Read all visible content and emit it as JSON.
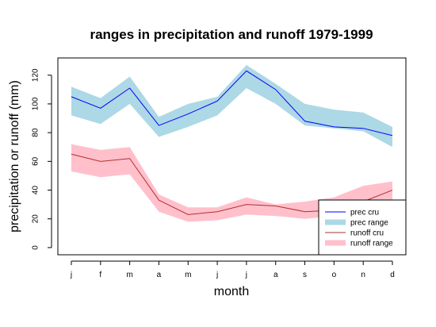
{
  "chart_data": {
    "type": "line",
    "title": "ranges in precipitation and runoff 1979-1999",
    "xlabel": "month",
    "ylabel": "precipitation or runoff (mm)",
    "categories": [
      "j",
      "f",
      "m",
      "a",
      "m",
      "j",
      "j",
      "a",
      "s",
      "o",
      "n",
      "d"
    ],
    "ylim": [
      -5,
      132
    ],
    "yticks": [
      0,
      20,
      40,
      60,
      80,
      100,
      120
    ],
    "grid": false,
    "legend_position": "bottom-right",
    "series": [
      {
        "name": "prec cru",
        "kind": "line",
        "color": "#0000ff",
        "values": [
          105,
          97,
          111,
          85,
          93,
          102,
          123,
          110,
          88,
          84,
          83,
          78
        ]
      },
      {
        "name": "prec range",
        "kind": "band",
        "color": "#add8e6",
        "lower": [
          92,
          86,
          100,
          77,
          84,
          92,
          111,
          100,
          85,
          83,
          81,
          70
        ],
        "upper": [
          112,
          104,
          119,
          91,
          100,
          105,
          127,
          114,
          100,
          96,
          94,
          84
        ]
      },
      {
        "name": "runoff cru",
        "kind": "line",
        "color": "#b03030",
        "values": [
          65,
          60,
          62,
          33,
          23,
          25,
          30,
          29,
          25,
          26,
          32,
          40
        ]
      },
      {
        "name": "runoff range",
        "kind": "band",
        "color": "#ffc0cb",
        "lower": [
          53,
          49,
          51,
          25,
          18,
          19,
          23,
          22,
          20,
          22,
          24,
          26
        ],
        "upper": [
          72,
          68,
          70,
          37,
          28,
          28,
          35,
          30,
          32,
          35,
          43,
          46
        ]
      }
    ]
  }
}
